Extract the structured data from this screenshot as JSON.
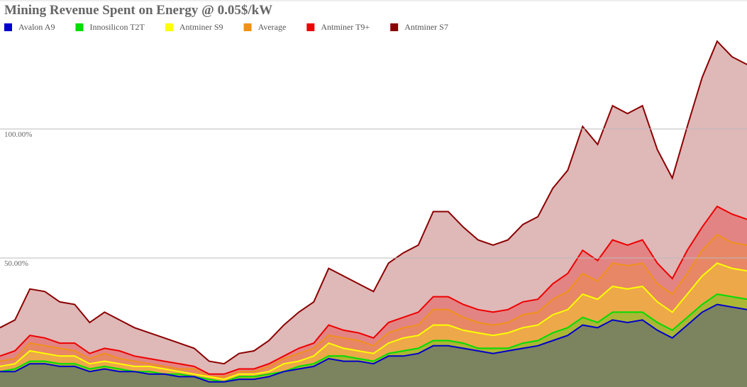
{
  "chart_data": {
    "type": "area",
    "title": "Mining Revenue Spent on Energy @ 0.05$/kW",
    "categories": [
      null,
      null,
      null,
      null,
      null,
      null,
      null,
      null,
      null,
      null,
      null,
      null,
      null,
      null,
      null,
      null,
      null,
      null,
      null,
      null,
      null,
      null,
      null,
      null,
      null,
      null,
      null,
      null,
      null,
      null,
      null,
      null,
      null,
      null,
      null,
      null,
      null,
      null,
      null,
      null,
      null,
      null,
      null,
      null,
      null,
      null,
      null,
      null,
      null,
      null,
      null
    ],
    "series": [
      {
        "name": "Avalon A9",
        "color": "#0000cc",
        "values": [
          6,
          6,
          9,
          9,
          8,
          8,
          6,
          7,
          6,
          6,
          5,
          5,
          4,
          4,
          2,
          2,
          3,
          3,
          4,
          6,
          7,
          8,
          11,
          10,
          10,
          9,
          12,
          12,
          13,
          16,
          16,
          15,
          14,
          13,
          14,
          15,
          16,
          18,
          20,
          24,
          23,
          26,
          25,
          26,
          22,
          19,
          24,
          29,
          32,
          31,
          30
        ]
      },
      {
        "name": "Innosilicon T2T",
        "color": "#00dd00",
        "values": [
          6,
          7,
          10,
          10,
          9,
          9,
          7,
          8,
          7,
          6,
          6,
          5,
          5,
          4,
          3,
          2,
          4,
          4,
          5,
          6,
          8,
          9,
          12,
          12,
          11,
          10,
          13,
          14,
          15,
          18,
          18,
          17,
          15,
          15,
          15,
          17,
          18,
          21,
          23,
          27,
          25,
          29,
          29,
          29,
          25,
          22,
          27,
          32,
          36,
          35,
          34
        ]
      },
      {
        "name": "Antminer S9",
        "color": "#ffff00",
        "values": [
          8,
          9,
          14,
          13,
          12,
          12,
          9,
          10,
          9,
          8,
          8,
          7,
          6,
          5,
          4,
          3,
          5,
          5,
          6,
          9,
          10,
          12,
          17,
          15,
          14,
          13,
          17,
          19,
          20,
          24,
          24,
          22,
          21,
          20,
          21,
          23,
          24,
          28,
          30,
          36,
          34,
          39,
          38,
          39,
          33,
          29,
          36,
          43,
          48,
          46,
          45
        ]
      },
      {
        "name": "Average",
        "color": "#f0901a",
        "values": [
          10,
          11,
          17,
          16,
          15,
          14,
          11,
          13,
          11,
          10,
          9,
          8,
          7,
          7,
          4,
          4,
          6,
          6,
          8,
          11,
          13,
          15,
          20,
          19,
          18,
          16,
          21,
          23,
          24,
          30,
          30,
          27,
          25,
          24,
          25,
          28,
          29,
          34,
          37,
          44,
          41,
          48,
          47,
          48,
          40,
          36,
          44,
          53,
          59,
          56,
          55
        ]
      },
      {
        "name": "Antminer T9+",
        "color": "#ee0000",
        "values": [
          12,
          14,
          20,
          19,
          17,
          17,
          13,
          15,
          14,
          12,
          11,
          10,
          9,
          8,
          5,
          5,
          7,
          7,
          9,
          12,
          15,
          17,
          24,
          22,
          21,
          19,
          25,
          27,
          29,
          35,
          35,
          32,
          30,
          29,
          30,
          33,
          34,
          40,
          44,
          53,
          49,
          57,
          55,
          57,
          48,
          42,
          53,
          62,
          70,
          67,
          65
        ]
      },
      {
        "name": "Antminer S7",
        "color": "#8b0000",
        "values": [
          23,
          26,
          38,
          37,
          33,
          32,
          25,
          29,
          26,
          23,
          21,
          19,
          17,
          15,
          10,
          9,
          13,
          14,
          18,
          24,
          29,
          33,
          46,
          43,
          40,
          37,
          48,
          52,
          55,
          68,
          68,
          62,
          57,
          55,
          57,
          63,
          66,
          77,
          84,
          101,
          94,
          109,
          106,
          109,
          92,
          81,
          101,
          120,
          134,
          128,
          125
        ]
      }
    ],
    "ylim": [
      0,
      150
    ],
    "yticks": [
      {
        "value": 50,
        "label": "50.00%"
      },
      {
        "value": 100,
        "label": "100.00%"
      }
    ],
    "grid": true
  }
}
